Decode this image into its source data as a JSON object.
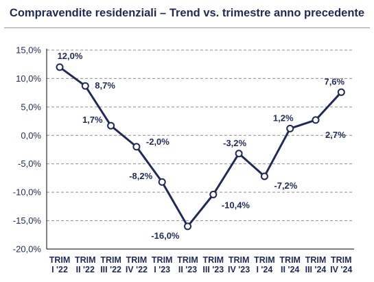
{
  "chart_data": {
    "type": "line",
    "title": "Compravendite residenziali – Trend vs. trimestre anno precedente",
    "categories": [
      [
        "TRIM",
        "I '22"
      ],
      [
        "TRIM",
        "II '22"
      ],
      [
        "TRIM",
        "III '22"
      ],
      [
        "TRIM",
        "IV '22"
      ],
      [
        "TRIM",
        "I '23"
      ],
      [
        "TRIM",
        "II '23"
      ],
      [
        "TRIM",
        "III '23"
      ],
      [
        "TRIM",
        "IV '23"
      ],
      [
        "TRIM",
        "I '24"
      ],
      [
        "TRIM",
        "II '24"
      ],
      [
        "TRIM",
        "III '24"
      ],
      [
        "TRIM",
        "IV '24"
      ]
    ],
    "values": [
      12.0,
      8.7,
      1.7,
      -2.0,
      -8.2,
      -16.0,
      -10.4,
      -3.2,
      -7.2,
      1.2,
      2.7,
      7.6
    ],
    "data_labels": [
      "12,0%",
      "8,7%",
      "1,7%",
      "-2,0%",
      "-8,2%",
      "-16,0%",
      "-10,4%",
      "-3,2%",
      "-7,2%",
      "1,2%",
      "2,7%",
      "7,6%"
    ],
    "yticks": [
      15,
      10,
      5,
      0,
      -5,
      -10,
      -15,
      -20
    ],
    "ytick_labels": [
      "15,0%",
      "10,0%",
      "5,0%",
      "0,0%",
      "-5,0%",
      "-10,0%",
      "-15,0%",
      "-20,0%"
    ],
    "ylim": [
      -20,
      15
    ],
    "grid": "horizontal dashed",
    "xlabel": "",
    "ylabel": "",
    "colors": {
      "line": "#1f2a5a",
      "text": "#1f2a5a",
      "grid": "#8c8c8c",
      "marker_fill": "#ffffff"
    }
  }
}
